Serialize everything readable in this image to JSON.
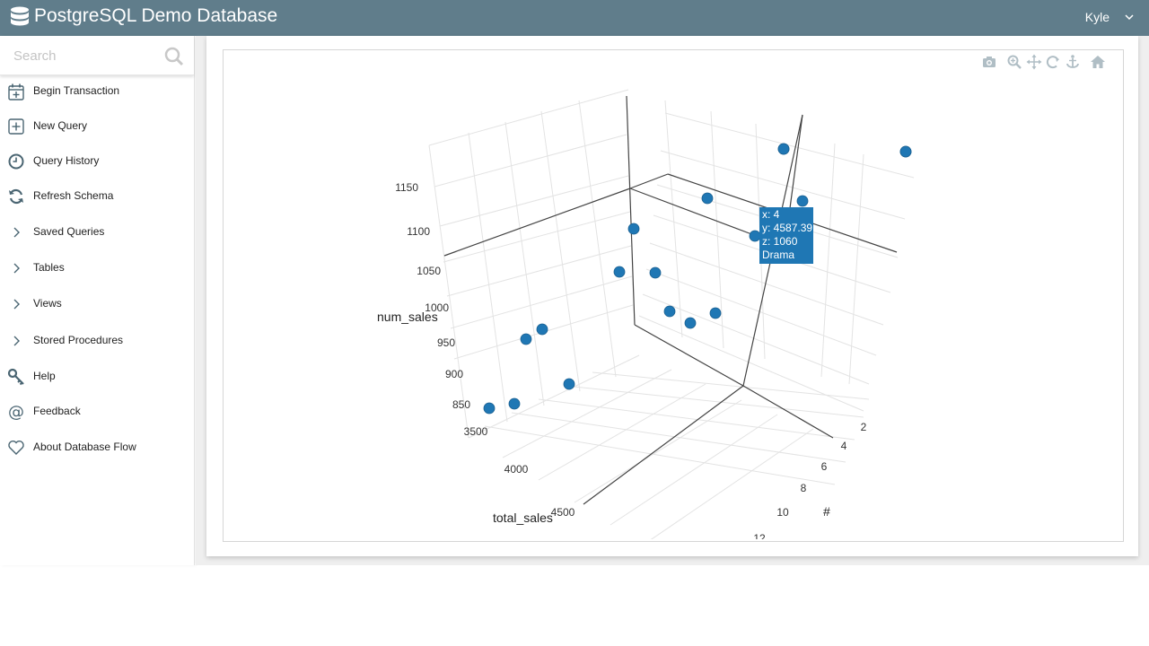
{
  "app": {
    "title": "PostgreSQL Demo Database",
    "user": "Kyle"
  },
  "sidebar": {
    "search_placeholder": "Search",
    "items": [
      {
        "label": "Begin Transaction",
        "icon": "calendar-plus-icon"
      },
      {
        "label": "New Query",
        "icon": "plus-square-icon"
      },
      {
        "label": "Query History",
        "icon": "clock-icon"
      },
      {
        "label": "Refresh Schema",
        "icon": "refresh-icon"
      },
      {
        "label": "Saved Queries",
        "icon": "chevron-right-icon"
      },
      {
        "label": "Tables",
        "icon": "chevron-right-icon"
      },
      {
        "label": "Views",
        "icon": "chevron-right-icon"
      },
      {
        "label": "Stored Procedures",
        "icon": "chevron-right-icon"
      },
      {
        "label": "Help",
        "icon": "key-icon"
      },
      {
        "label": "Feedback",
        "icon": "at-icon"
      },
      {
        "label": "About Database Flow",
        "icon": "heart-icon"
      }
    ]
  },
  "plot": {
    "modebar": [
      "camera-icon",
      "zoom-icon",
      "pan-icon",
      "orbit-rotate-icon",
      "turntable-icon",
      "home-icon"
    ],
    "axis_titles": {
      "x": "#",
      "y": "total_sales",
      "z": "num_sales"
    },
    "x_ticks": [
      "2",
      "4",
      "6",
      "8",
      "10",
      "12"
    ],
    "y_ticks": [
      "3500",
      "4000",
      "4500"
    ],
    "z_ticks": [
      "1150",
      "1100",
      "1050",
      "1000",
      "950",
      "900",
      "850"
    ],
    "tooltip": {
      "x": "x: 4",
      "y": "y: 4587.39",
      "z": "z: 1060",
      "name": "Drama"
    }
  },
  "chart_data": {
    "type": "scatter",
    "title": "",
    "xlabel": "#",
    "ylabel": "total_sales",
    "zlabel": "num_sales",
    "series": [
      {
        "points": [
          {
            "x": 4,
            "y": 4587.39,
            "z": 1060,
            "label": "Drama"
          }
        ]
      }
    ],
    "point_count": 18,
    "colors": {
      "marker": "#1f77b4"
    }
  }
}
